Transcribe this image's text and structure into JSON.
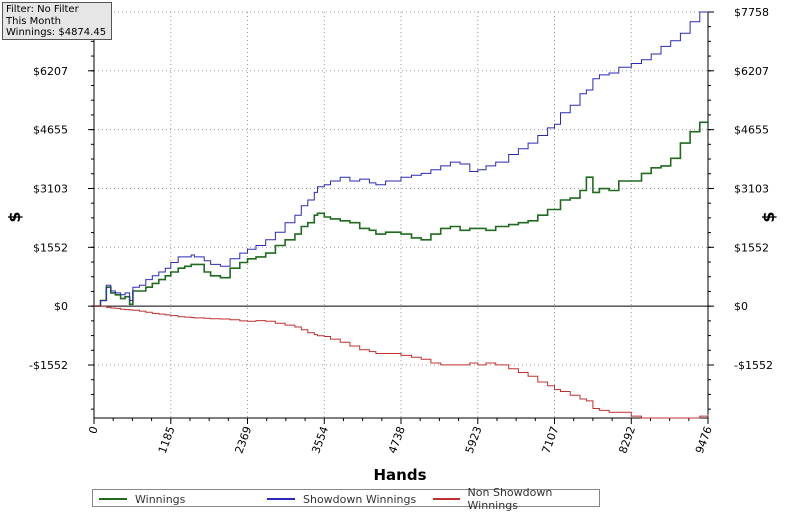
{
  "filter_box": {
    "line1": "Filter: No Filter",
    "line2": "This Month",
    "line3": "Winnings: $4874.45"
  },
  "chart_data": {
    "type": "line",
    "xlabel": "Hands",
    "ylabel": "$",
    "xlim": [
      0,
      9476
    ],
    "ylim": [
      -2950,
      7758
    ],
    "grid": true,
    "x_ticks": [
      0,
      1185,
      2369,
      3554,
      4738,
      5923,
      7107,
      8292,
      9476
    ],
    "y_ticks": [
      -1552,
      0,
      1552,
      3103,
      4655,
      6207,
      7758
    ],
    "y_tick_labels": [
      "-$1552",
      "$0",
      "$1552",
      "$3103",
      "$4655",
      "$6207",
      "$7758"
    ],
    "legend_position": "bottom",
    "series": [
      {
        "name": "Winnings",
        "color": "#1e6b1e",
        "x": [
          0,
          100,
          190,
          260,
          330,
          410,
          480,
          550,
          600,
          700,
          800,
          900,
          1000,
          1100,
          1185,
          1300,
          1400,
          1500,
          1550,
          1700,
          1800,
          1950,
          2100,
          2250,
          2369,
          2500,
          2650,
          2800,
          2950,
          3100,
          3200,
          3300,
          3400,
          3450,
          3554,
          3650,
          3800,
          3950,
          4100,
          4250,
          4350,
          4500,
          4738,
          4900,
          5050,
          5200,
          5350,
          5500,
          5650,
          5800,
          5923,
          6050,
          6200,
          6400,
          6550,
          6700,
          6850,
          7000,
          7107,
          7200,
          7350,
          7500,
          7600,
          7700,
          7800,
          7950,
          8100,
          8292,
          8450,
          8600,
          8750,
          8900,
          9050,
          9200,
          9350,
          9476
        ],
        "y": [
          0,
          150,
          500,
          350,
          300,
          200,
          250,
          50,
          400,
          400,
          500,
          600,
          700,
          800,
          900,
          1000,
          1050,
          1100,
          1100,
          900,
          800,
          750,
          1000,
          1150,
          1250,
          1300,
          1400,
          1600,
          1750,
          1900,
          2100,
          2200,
          2400,
          2450,
          2350,
          2300,
          2250,
          2200,
          2050,
          2000,
          1900,
          1950,
          1900,
          1800,
          1750,
          1900,
          2050,
          2100,
          2000,
          2050,
          2050,
          2000,
          2100,
          2150,
          2200,
          2250,
          2400,
          2550,
          2550,
          2800,
          2850,
          3050,
          3400,
          3000,
          3100,
          3050,
          3300,
          3300,
          3500,
          3650,
          3700,
          3900,
          4300,
          4600,
          4850,
          4874
        ]
      },
      {
        "name": "Showdown Winnings",
        "color": "#2a2ab8",
        "x": [
          0,
          100,
          190,
          260,
          330,
          410,
          480,
          550,
          600,
          700,
          800,
          900,
          1000,
          1100,
          1185,
          1300,
          1400,
          1500,
          1550,
          1700,
          1800,
          1950,
          2100,
          2250,
          2369,
          2500,
          2650,
          2800,
          2950,
          3100,
          3200,
          3300,
          3400,
          3450,
          3554,
          3650,
          3800,
          3950,
          4100,
          4250,
          4350,
          4500,
          4738,
          4900,
          5050,
          5200,
          5350,
          5500,
          5650,
          5800,
          5923,
          6050,
          6200,
          6400,
          6550,
          6700,
          6850,
          7000,
          7107,
          7200,
          7350,
          7500,
          7600,
          7700,
          7800,
          7950,
          8100,
          8292,
          8450,
          8600,
          8750,
          8900,
          9050,
          9200,
          9350,
          9476
        ],
        "y": [
          0,
          150,
          550,
          400,
          350,
          300,
          350,
          150,
          500,
          550,
          700,
          800,
          900,
          1000,
          1150,
          1300,
          1300,
          1350,
          1300,
          1200,
          1100,
          1050,
          1250,
          1400,
          1500,
          1600,
          1750,
          1950,
          2200,
          2400,
          2650,
          2800,
          3000,
          3150,
          3200,
          3300,
          3400,
          3300,
          3350,
          3250,
          3200,
          3300,
          3400,
          3450,
          3500,
          3600,
          3700,
          3800,
          3750,
          3550,
          3600,
          3700,
          3800,
          4000,
          4150,
          4300,
          4500,
          4700,
          4800,
          5100,
          5300,
          5600,
          5700,
          6000,
          6100,
          6150,
          6300,
          6400,
          6500,
          6650,
          6850,
          7000,
          7200,
          7500,
          7758,
          7758
        ]
      },
      {
        "name": "Non Showdown Winnings",
        "color": "#c03030",
        "x": [
          0,
          100,
          190,
          260,
          330,
          410,
          480,
          550,
          600,
          700,
          800,
          900,
          1000,
          1100,
          1185,
          1300,
          1400,
          1500,
          1550,
          1700,
          1800,
          1950,
          2100,
          2250,
          2369,
          2500,
          2650,
          2800,
          2950,
          3100,
          3200,
          3300,
          3400,
          3450,
          3554,
          3650,
          3800,
          3950,
          4100,
          4250,
          4350,
          4500,
          4738,
          4900,
          5050,
          5200,
          5350,
          5500,
          5650,
          5800,
          5923,
          6050,
          6200,
          6400,
          6550,
          6700,
          6850,
          7000,
          7107,
          7200,
          7350,
          7500,
          7600,
          7700,
          7800,
          7950,
          8100,
          8292,
          8450,
          8600,
          8750,
          8900,
          9050,
          9200,
          9350,
          9476
        ],
        "y": [
          0,
          0,
          -30,
          -50,
          -60,
          -80,
          -90,
          -100,
          -110,
          -130,
          -160,
          -190,
          -210,
          -230,
          -250,
          -280,
          -290,
          -300,
          -310,
          -320,
          -330,
          -340,
          -360,
          -390,
          -400,
          -380,
          -400,
          -450,
          -500,
          -550,
          -620,
          -700,
          -750,
          -780,
          -800,
          -870,
          -950,
          -1050,
          -1150,
          -1200,
          -1250,
          -1250,
          -1300,
          -1350,
          -1400,
          -1500,
          -1550,
          -1550,
          -1550,
          -1500,
          -1550,
          -1500,
          -1550,
          -1650,
          -1750,
          -1850,
          -2000,
          -2100,
          -2200,
          -2250,
          -2350,
          -2450,
          -2500,
          -2700,
          -2750,
          -2800,
          -2800,
          -2900,
          -2950,
          -2950,
          -2950,
          -2950,
          -2950,
          -2950,
          -2900,
          -2850
        ]
      }
    ]
  }
}
